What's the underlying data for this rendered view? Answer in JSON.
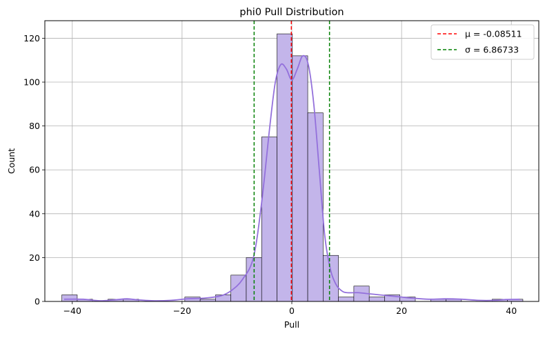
{
  "chart_data": {
    "type": "histogram",
    "title": "phi0 Pull Distribution",
    "xlabel": "Pull",
    "ylabel": "Count",
    "xlim": [
      -45,
      45
    ],
    "ylim": [
      0,
      128
    ],
    "xticks": [
      -40,
      -20,
      0,
      20,
      40
    ],
    "yticks": [
      0,
      20,
      40,
      60,
      80,
      100,
      120
    ],
    "grid": true,
    "bar_color": "#c3b5ea",
    "bar_edge_color": "#000000",
    "kde_color": "#9370db",
    "bins": [
      {
        "x0": -41.9,
        "x1": -39.1,
        "count": 3
      },
      {
        "x0": -39.1,
        "x1": -36.3,
        "count": 1
      },
      {
        "x0": -36.3,
        "x1": -33.5,
        "count": 0
      },
      {
        "x0": -33.5,
        "x1": -30.7,
        "count": 1
      },
      {
        "x0": -30.7,
        "x1": -27.9,
        "count": 1
      },
      {
        "x0": -27.9,
        "x1": -25.1,
        "count": 0
      },
      {
        "x0": -25.1,
        "x1": -22.3,
        "count": 0
      },
      {
        "x0": -22.3,
        "x1": -19.5,
        "count": 0
      },
      {
        "x0": -19.5,
        "x1": -16.7,
        "count": 2
      },
      {
        "x0": -16.7,
        "x1": -13.9,
        "count": 1
      },
      {
        "x0": -13.9,
        "x1": -11.1,
        "count": 3
      },
      {
        "x0": -11.1,
        "x1": -8.3,
        "count": 12
      },
      {
        "x0": -8.3,
        "x1": -5.5,
        "count": 20
      },
      {
        "x0": -5.5,
        "x1": -2.7,
        "count": 75
      },
      {
        "x0": -2.7,
        "x1": 0.1,
        "count": 122
      },
      {
        "x0": 0.1,
        "x1": 2.9,
        "count": 112
      },
      {
        "x0": 2.9,
        "x1": 5.7,
        "count": 86
      },
      {
        "x0": 5.7,
        "x1": 8.5,
        "count": 21
      },
      {
        "x0": 8.5,
        "x1": 11.3,
        "count": 2
      },
      {
        "x0": 11.3,
        "x1": 14.1,
        "count": 7
      },
      {
        "x0": 14.1,
        "x1": 16.9,
        "count": 2
      },
      {
        "x0": 16.9,
        "x1": 19.7,
        "count": 3
      },
      {
        "x0": 19.7,
        "x1": 22.5,
        "count": 2
      },
      {
        "x0": 22.5,
        "x1": 25.3,
        "count": 0
      },
      {
        "x0": 25.3,
        "x1": 28.1,
        "count": 1
      },
      {
        "x0": 28.1,
        "x1": 30.9,
        "count": 1
      },
      {
        "x0": 30.9,
        "x1": 33.7,
        "count": 0
      },
      {
        "x0": 33.7,
        "x1": 36.5,
        "count": 0
      },
      {
        "x0": 36.5,
        "x1": 39.3,
        "count": 1
      },
      {
        "x0": 39.3,
        "x1": 42.1,
        "count": 1
      }
    ],
    "kde": {
      "x": [
        -41.5,
        -38,
        -35,
        -32,
        -30,
        -28,
        -25,
        -22,
        -19,
        -16,
        -13,
        -11,
        -9,
        -7,
        -5.5,
        -4,
        -3,
        -2,
        -1,
        0,
        1,
        2,
        3,
        4,
        5,
        6,
        7,
        8,
        9,
        10,
        12,
        14,
        16,
        18,
        20,
        22,
        25,
        28,
        31,
        34,
        37,
        39,
        41.5
      ],
      "y": [
        1,
        1,
        0.3,
        0.8,
        1.2,
        0.7,
        0.3,
        0.5,
        1.2,
        1.5,
        2.5,
        5,
        10,
        20,
        45,
        80,
        100,
        108,
        106,
        101,
        106,
        112,
        108,
        90,
        60,
        30,
        15,
        8,
        5,
        4,
        4,
        3.5,
        3,
        2.5,
        2,
        1.5,
        1,
        1.2,
        1,
        0.5,
        0.5,
        0.9,
        1
      ]
    },
    "vlines": [
      {
        "label": "μ = -0.08511",
        "x": -0.08511,
        "color": "#ff0000",
        "style": "dashed"
      },
      {
        "label": "σ = 6.86733",
        "x": 6.86733,
        "color": "#008000",
        "style": "dashed"
      },
      {
        "label": "",
        "x": -6.86733,
        "color": "#008000",
        "style": "dashed"
      }
    ],
    "legend": {
      "placement": "top-right",
      "entries": [
        {
          "label": "μ = -0.08511",
          "color": "#ff0000"
        },
        {
          "label": "σ = 6.86733",
          "color": "#008000"
        }
      ]
    }
  }
}
